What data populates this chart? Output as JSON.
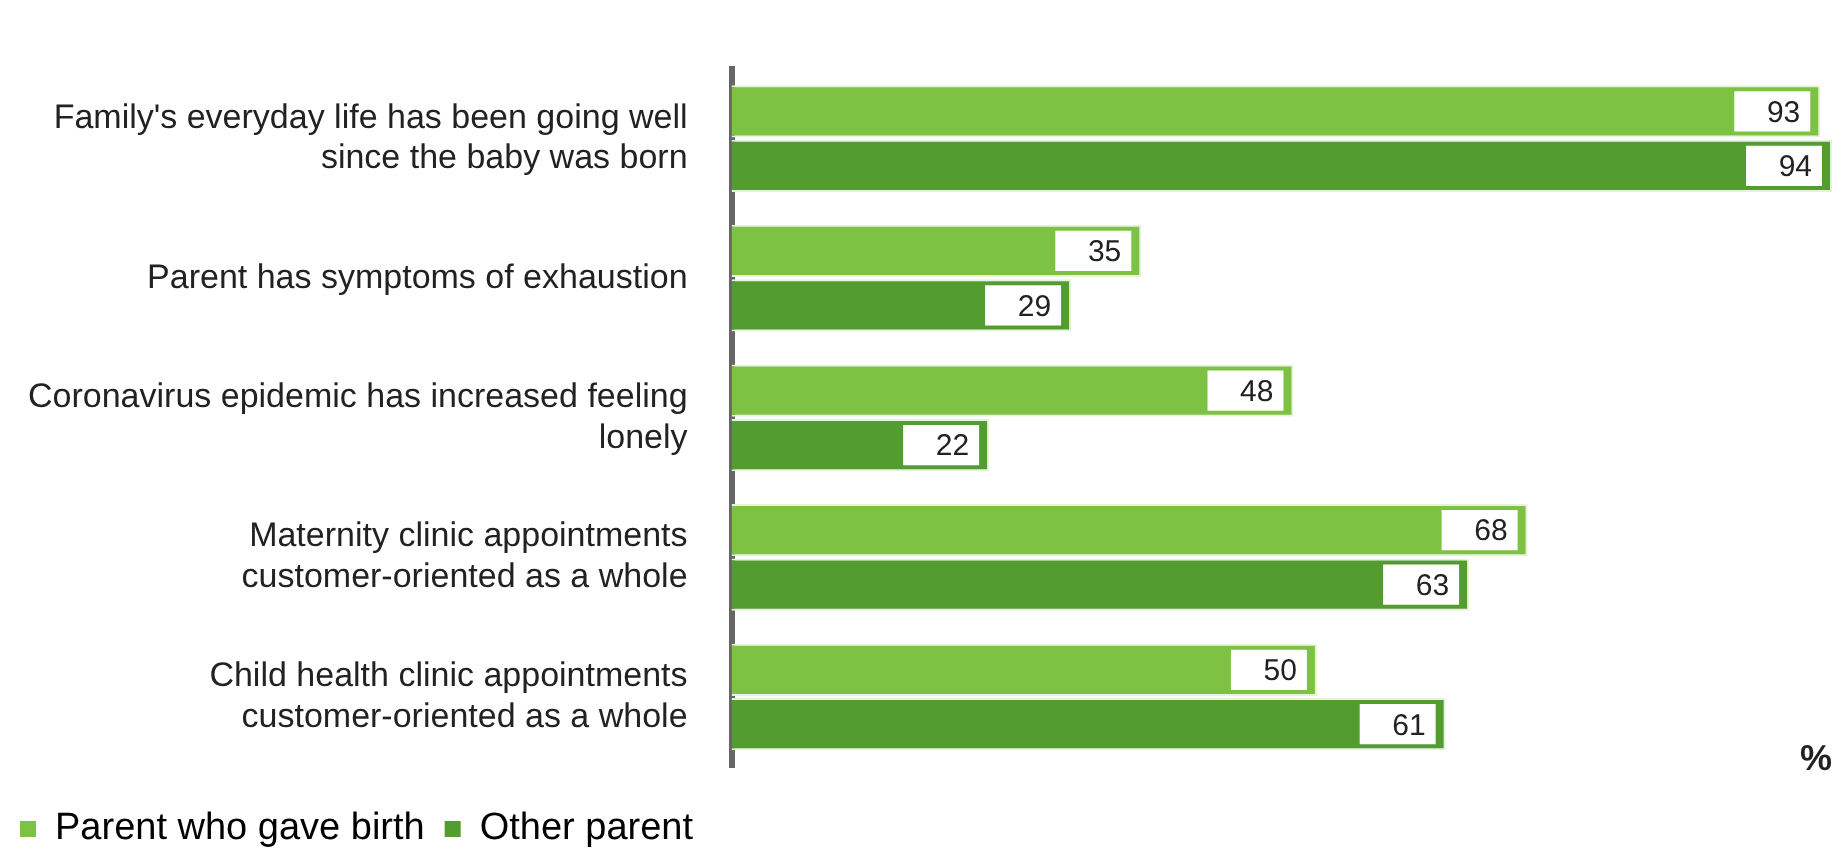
{
  "chart_data": {
    "type": "bar",
    "orientation": "horizontal",
    "relative": false,
    "xlabel": "%",
    "categories": [
      "Family's everyday life has been going well since the baby was born",
      "Parent has symptoms of exhaustion",
      "Coronavirus epidemic has increased feeling lonely",
      "Maternity clinic appointments customer-oriented as a whole",
      "Child health clinic appointments customer-oriented as a whole"
    ],
    "series": [
      {
        "name": "Parent who gave birth",
        "color": "#7dc242",
        "values": [
          93,
          35,
          48,
          68,
          50
        ]
      },
      {
        "name": "Other parent",
        "color": "#529c30",
        "values": [
          94,
          29,
          22,
          63,
          61
        ]
      }
    ],
    "data_labels": true,
    "legend": "bottom",
    "grid": false
  }
}
